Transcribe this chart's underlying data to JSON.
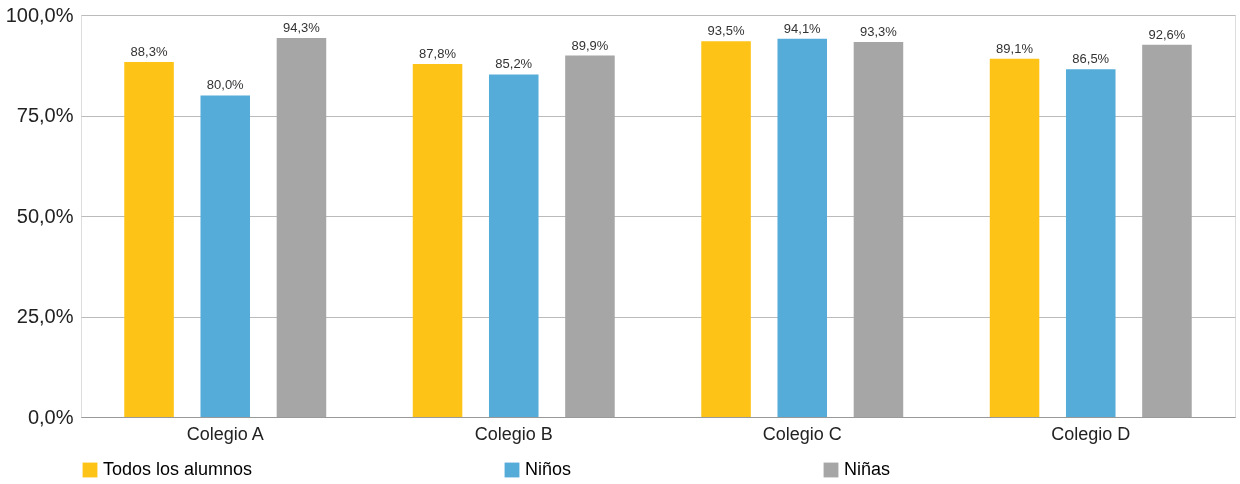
{
  "chart_data": {
    "type": "bar",
    "categories": [
      "Colegio A",
      "Colegio B",
      "Colegio C",
      "Colegio D"
    ],
    "series": [
      {
        "name": "Todos los alumnos",
        "color": "#fdc316",
        "values": [
          88.3,
          87.8,
          93.5,
          89.1
        ],
        "value_labels": [
          "88,3%",
          "87,8%",
          "93,5%",
          "89,1%"
        ]
      },
      {
        "name": "Niños",
        "color": "#55acd9",
        "values": [
          80.0,
          85.2,
          94.1,
          86.5
        ],
        "value_labels": [
          "80,0%",
          "85,2%",
          "94,1%",
          "86,5%"
        ]
      },
      {
        "name": "Niñas",
        "color": "#a6a6a6",
        "values": [
          94.3,
          89.9,
          93.3,
          92.6
        ],
        "value_labels": [
          "94,3%",
          "89,9%",
          "93,3%",
          "92,6%"
        ]
      }
    ],
    "ylim": [
      0,
      100
    ],
    "yticks": [
      {
        "value": 0,
        "label": "0,0%"
      },
      {
        "value": 25,
        "label": "25,0%"
      },
      {
        "value": 50,
        "label": "50,0%"
      },
      {
        "value": 75,
        "label": "75,0%"
      },
      {
        "value": 100,
        "label": "100,0%"
      }
    ],
    "grid": "y",
    "legend": "bottom"
  }
}
